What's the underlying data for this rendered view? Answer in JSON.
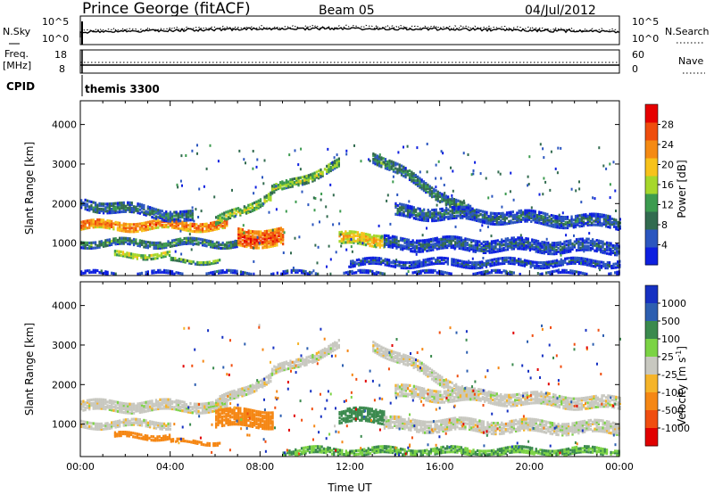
{
  "header": {
    "title": "Prince George (fitACF)",
    "beam": "Beam 05",
    "date": "04/Jul/2012"
  },
  "chart_data": [
    {
      "type": "line",
      "panel": "noise",
      "ylabel_left": "N.Sky",
      "ylabel_right": "N.Search",
      "left_ticks": [
        "10^5",
        "10^0"
      ],
      "right_ticks": [
        "10^5",
        "10^0"
      ],
      "scale": "log"
    },
    {
      "type": "line",
      "panel": "frequency",
      "ylabel_left": "Freq.\n[MHz]",
      "ylabel_right": "Nave",
      "left_ticks": [
        "18",
        "8"
      ],
      "right_ticks": [
        "60",
        "0"
      ],
      "ylim_left": [
        8,
        18
      ],
      "ylim_right": [
        0,
        60
      ]
    },
    {
      "type": "table",
      "panel": "cpid",
      "label": "CPID",
      "segments": [
        {
          "start_hour": 0,
          "name": "themis 3300"
        }
      ]
    },
    {
      "type": "heatmap",
      "panel": "power",
      "ylabel": "Slant Range [km]",
      "xlabel": "",
      "y_ticks": [
        1000,
        2000,
        3000,
        4000
      ],
      "ylim": [
        180,
        4600
      ],
      "xlim": [
        0,
        24
      ],
      "colorbar": {
        "label": "Power [dB]",
        "ticks": [
          4,
          8,
          12,
          16,
          20,
          24,
          28
        ],
        "colors": [
          "#0d1fe0",
          "#2b56bf",
          "#326b4f",
          "#3c9b4f",
          "#a6d72b",
          "#f7c21b",
          "#f58a13",
          "#ef4d0d",
          "#e60000"
        ]
      },
      "bands": [
        {
          "r_start": 1450,
          "r_end": 1450,
          "t_start": 0.0,
          "t_end": 6.5,
          "spread": 110,
          "value": 26
        },
        {
          "r_start": 1500,
          "r_end": 2200,
          "t_start": 6.0,
          "t_end": 8.5,
          "spread": 90,
          "value": 18
        },
        {
          "r_start": 2300,
          "r_end": 3000,
          "t_start": 8.5,
          "t_end": 11.5,
          "spread": 100,
          "value": 16
        },
        {
          "r_start": 2000,
          "r_end": 1650,
          "t_start": 0.0,
          "t_end": 5.0,
          "spread": 120,
          "value": 10
        },
        {
          "r_start": 1000,
          "r_end": 1000,
          "t_start": 0.0,
          "t_end": 7.0,
          "spread": 80,
          "value": 12
        },
        {
          "r_start": 700,
          "r_end": 700,
          "t_start": 1.5,
          "t_end": 4.0,
          "spread": 60,
          "value": 18
        },
        {
          "r_start": 550,
          "r_end": 550,
          "t_start": 4.0,
          "t_end": 6.2,
          "spread": 40,
          "value": 14
        },
        {
          "r_start": 1150,
          "r_end": 1150,
          "t_start": 7.0,
          "t_end": 9.0,
          "spread": 220,
          "value": 28
        },
        {
          "r_start": 1100,
          "r_end": 1100,
          "t_start": 11.5,
          "t_end": 13.5,
          "spread": 150,
          "value": 22
        },
        {
          "r_start": 3200,
          "r_end": 1700,
          "t_start": 13.0,
          "t_end": 17.5,
          "spread": 120,
          "value": 12
        },
        {
          "r_start": 1800,
          "r_end": 1500,
          "t_start": 14.0,
          "t_end": 24.0,
          "spread": 140,
          "value": 9
        },
        {
          "r_start": 1000,
          "r_end": 900,
          "t_start": 13.5,
          "t_end": 24.0,
          "spread": 150,
          "value": 8
        },
        {
          "r_start": 500,
          "r_end": 500,
          "t_start": 12.0,
          "t_end": 24.0,
          "spread": 80,
          "value": 7
        },
        {
          "r_start": 230,
          "r_end": 230,
          "t_start": 0.0,
          "t_end": 24.0,
          "spread": 35,
          "value": 6
        }
      ]
    },
    {
      "type": "heatmap",
      "panel": "velocity",
      "ylabel": "Slant Range [km]",
      "xlabel": "Time UT",
      "x_ticks": [
        "00:00",
        "04:00",
        "08:00",
        "12:00",
        "16:00",
        "20:00",
        "00:00"
      ],
      "y_ticks": [
        1000,
        2000,
        3000,
        4000
      ],
      "ylim": [
        180,
        4600
      ],
      "xlim": [
        0,
        24
      ],
      "colorbar": {
        "label": "Velocity [m s",
        "label_sup": "-1",
        "label_end": "]",
        "ticks": [
          "1000",
          "500",
          "100",
          "25",
          "-25",
          "-100",
          "-500",
          "-1000"
        ],
        "colors": [
          "#1631c2",
          "#2d5fb0",
          "#3b8a4e",
          "#7bd344",
          "#c8c8c0",
          "#f5b42a",
          "#f58714",
          "#f04e10",
          "#e10000"
        ]
      },
      "bands": [
        {
          "r_start": 1450,
          "r_end": 1450,
          "t_start": 0.0,
          "t_end": 6.5,
          "spread": 120,
          "value": 0
        },
        {
          "r_start": 1500,
          "r_end": 2200,
          "t_start": 6.0,
          "t_end": 8.5,
          "spread": 100,
          "value": 0
        },
        {
          "r_start": 2300,
          "r_end": 3000,
          "t_start": 8.5,
          "t_end": 11.5,
          "spread": 110,
          "value": 0
        },
        {
          "r_start": 1000,
          "r_end": 1000,
          "t_start": 0.0,
          "t_end": 4.0,
          "spread": 80,
          "value": 0
        },
        {
          "r_start": 700,
          "r_end": 700,
          "t_start": 1.5,
          "t_end": 4.0,
          "spread": 60,
          "value": -400
        },
        {
          "r_start": 550,
          "r_end": 550,
          "t_start": 4.0,
          "t_end": 6.2,
          "spread": 40,
          "value": -300
        },
        {
          "r_start": 1150,
          "r_end": 1150,
          "t_start": 6.0,
          "t_end": 8.6,
          "spread": 220,
          "value": -400
        },
        {
          "r_start": 1200,
          "r_end": 1200,
          "t_start": 11.5,
          "t_end": 13.5,
          "spread": 170,
          "value": 150
        },
        {
          "r_start": 3000,
          "r_end": 1700,
          "t_start": 13.0,
          "t_end": 17.5,
          "spread": 120,
          "value": 0
        },
        {
          "r_start": 1800,
          "r_end": 1500,
          "t_start": 14.0,
          "t_end": 24.0,
          "spread": 140,
          "value": 0
        },
        {
          "r_start": 1000,
          "r_end": 900,
          "t_start": 13.5,
          "t_end": 24.0,
          "spread": 150,
          "value": 0
        },
        {
          "r_start": 300,
          "r_end": 300,
          "t_start": 9.0,
          "t_end": 24.0,
          "spread": 70,
          "value": 60
        }
      ]
    }
  ]
}
